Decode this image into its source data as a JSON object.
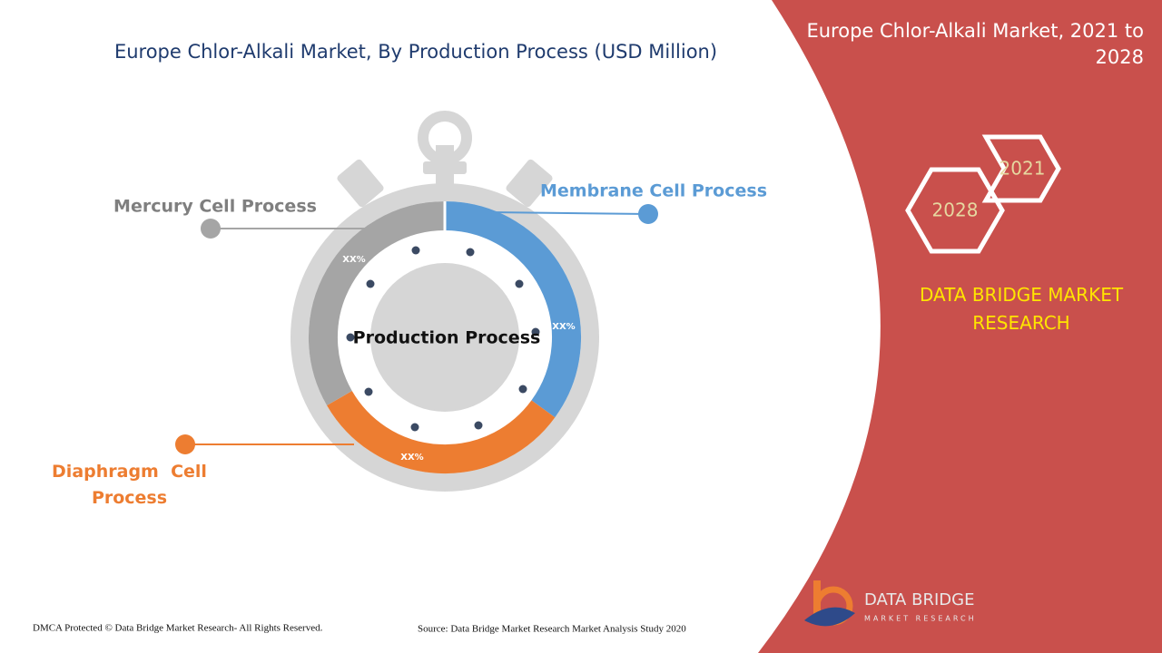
{
  "header": {
    "title": "Europe Chlor-Alkali Market, By Production Process (USD Million)"
  },
  "panel": {
    "title": "Europe Chlor-Alkali Market, 2021 to 2028",
    "years": [
      "2021",
      "2028"
    ],
    "brand": "DATA BRIDGE MARKET RESEARCH"
  },
  "diagram": {
    "center": "Production Process",
    "segments": [
      {
        "label": "Membrane Cell Process",
        "share": "XX%"
      },
      {
        "label": "Diaphragm  Cell Process",
        "share": "XX%"
      },
      {
        "label": "Mercury Cell Process",
        "share": "XX%"
      }
    ]
  },
  "footer": {
    "copyright": "DMCA Protected © Data Bridge Market Research- All Rights Reserved.",
    "source": "Source: Data Bridge Market Research Market Analysis Study 2020",
    "logo": "DATA BRIDGE",
    "logo_sub": "MARKET RESEARCH"
  }
}
